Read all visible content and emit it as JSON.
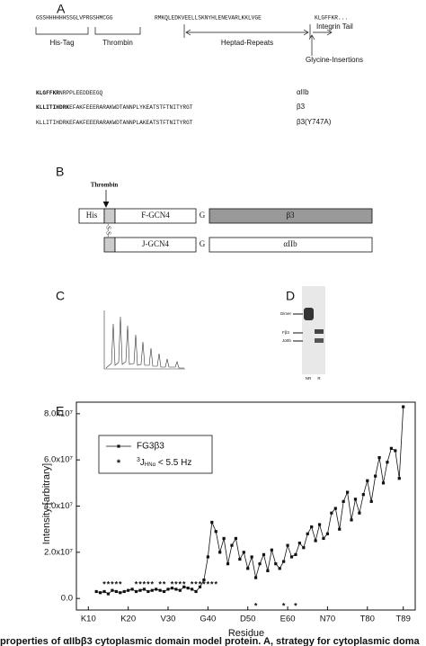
{
  "figure": {
    "panel_a": {
      "label": "A",
      "seq_parts": [
        "GSSHHHHHHSSGLVPRGSHMCGG",
        "RMKQLEDKVEELLSKNYHLENEVARLKKLVGE",
        "KLGFFKR..."
      ],
      "regions": [
        "His-Tag",
        "Thrombin",
        "Heptad-Repeats",
        "Integrin Tail",
        "Glycine-Insertions"
      ],
      "sequences": [
        {
          "bold": "KLGFFKR",
          "rest": "NRPPLEEDDEEGQ",
          "name": "αIIb"
        },
        {
          "bold": "KLLITIHDRK",
          "rest": "EFAKFEEERARAKWDTANNPLYKEATSTFTNITYRGT",
          "name": "β3"
        },
        {
          "bold": "",
          "rest": "KLLITIHDRKEFAKFEEERARAKWDTANNPLAKEATSTFTNITYRGT",
          "name": "β3(Y747A)"
        }
      ]
    },
    "panel_b": {
      "label": "B",
      "cleavage": "Thrombin",
      "his": "His",
      "f_chain": "F-GCN4",
      "j_chain": "J-GCN4",
      "linker": "G",
      "disulfide": "-S-S-",
      "tail_top": "β3",
      "tail_bottom": "αIIb"
    },
    "panel_c": {
      "label": "C"
    },
    "panel_d": {
      "label": "D",
      "bands": [
        "Dimer",
        "Fβ3",
        "JαIIb"
      ],
      "lanes": [
        "NR",
        "R"
      ]
    },
    "panel_e": {
      "label": "E"
    },
    "caption": "properties of αIIbβ3 cytoplasmic domain model protein. A, strategy for cytoplasmic doma"
  },
  "chart_data": {
    "type": "line",
    "x_label": "Residue",
    "y_label": "Intensity [arbitrary]",
    "x": [
      12,
      13,
      14,
      15,
      16,
      17,
      18,
      19,
      20,
      21,
      22,
      23,
      24,
      25,
      26,
      27,
      28,
      29,
      30,
      31,
      32,
      33,
      34,
      35,
      36,
      37,
      38,
      39,
      40,
      41,
      42,
      43,
      44,
      45,
      46,
      47,
      48,
      49,
      50,
      51,
      52,
      53,
      54,
      55,
      56,
      57,
      58,
      59,
      60,
      61,
      62,
      63,
      64,
      65,
      66,
      67,
      68,
      69,
      70,
      71,
      72,
      73,
      74,
      75,
      76,
      77,
      78,
      79,
      80,
      81,
      82,
      83,
      84,
      85,
      86,
      87,
      88,
      89
    ],
    "series": [
      {
        "name": "FG3β3",
        "color": "#111111",
        "values": [
          3000000,
          2500000,
          3000000,
          2000000,
          3500000,
          3000000,
          2500000,
          3000000,
          3500000,
          4000000,
          3000000,
          3500000,
          4000000,
          3000000,
          3500000,
          4000000,
          3500000,
          3000000,
          4000000,
          4500000,
          4000000,
          3500000,
          5000000,
          4500000,
          4000000,
          3000000,
          5000000,
          8000000,
          18000000,
          33000000,
          29000000,
          20000000,
          26000000,
          15000000,
          23000000,
          26000000,
          17000000,
          20000000,
          13000000,
          18000000,
          9000000,
          15000000,
          19000000,
          12000000,
          21000000,
          15000000,
          13000000,
          16000000,
          23000000,
          18000000,
          19000000,
          24000000,
          22000000,
          28000000,
          31000000,
          25000000,
          32000000,
          26000000,
          28000000,
          37000000,
          39000000,
          30000000,
          42000000,
          46000000,
          34000000,
          43000000,
          37000000,
          45000000,
          51000000,
          42000000,
          53000000,
          61000000,
          50000000,
          59000000,
          65000000,
          64000000,
          52000000,
          83000000
        ]
      }
    ],
    "star_residues": [
      14,
      15,
      16,
      17,
      18,
      22,
      23,
      24,
      25,
      26,
      28,
      29,
      31,
      32,
      33,
      34,
      36,
      37,
      38,
      39,
      40,
      41,
      42,
      52,
      59,
      62
    ],
    "legend_star": {
      "symbol": "*",
      "sup": "3",
      "j": "J",
      "sub": "HNα",
      "rest": " < 5.5 Hz"
    },
    "xlim": [
      7,
      92
    ],
    "ylim": [
      -5000000,
      85000000
    ],
    "xticks": [
      {
        "value": 10,
        "label": "K10"
      },
      {
        "value": 20,
        "label": "K20"
      },
      {
        "value": 30,
        "label": "V30"
      },
      {
        "value": 40,
        "label": "G40"
      },
      {
        "value": 50,
        "label": "D50"
      },
      {
        "value": 60,
        "label": "E60"
      },
      {
        "value": 70,
        "label": "N70"
      },
      {
        "value": 80,
        "label": "T80"
      },
      {
        "value": 89,
        "label": "T89"
      }
    ],
    "yticks": [
      {
        "value": 0,
        "label": "0.0"
      },
      {
        "value": 20000000,
        "label": "2.0x10⁷"
      },
      {
        "value": 40000000,
        "label": "4.0x10⁷"
      },
      {
        "value": 60000000,
        "label": "6.0x10⁷"
      },
      {
        "value": 80000000,
        "label": "8.0x10⁷"
      }
    ],
    "legend": "upper-left"
  }
}
